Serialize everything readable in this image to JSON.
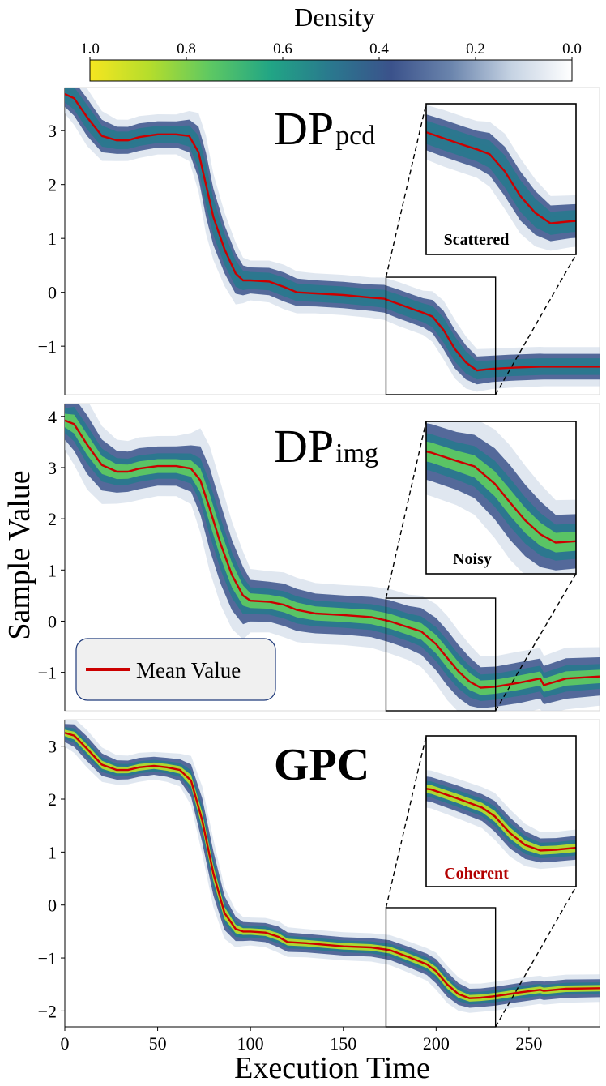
{
  "colorbar": {
    "label": "Density",
    "ticks": [
      "1.0",
      "0.8",
      "0.6",
      "0.4",
      "0.2",
      "0.0"
    ],
    "stops": [
      "#f6e620",
      "#b4dd2c",
      "#5dc863",
      "#21a585",
      "#2a788e",
      "#3b528b",
      "#6b85ad",
      "#c6d3e3",
      "#ffffff"
    ]
  },
  "axes": {
    "xlabel": "Execution Time",
    "ylabel": "Sample Value"
  },
  "legend": {
    "label": "Mean Value",
    "color": "#cc0000"
  },
  "chart_data": [
    {
      "type": "line",
      "title_main": "DP",
      "title_sub": "pcd",
      "xlim": [
        0,
        288
      ],
      "ylim": [
        -1.9,
        3.8
      ],
      "x_ticks": [
        0,
        50,
        100,
        150,
        200,
        250
      ],
      "y_ticks": [
        3,
        2,
        1,
        0,
        -1
      ],
      "y_tick_labels": [
        "3",
        "2",
        "1",
        "0",
        "−1"
      ],
      "mean_x": [
        0,
        5,
        12,
        20,
        28,
        34,
        40,
        50,
        60,
        67,
        72,
        76,
        80,
        86,
        92,
        96,
        100,
        110,
        118,
        125,
        135,
        150,
        165,
        172,
        180,
        188,
        193,
        198,
        204,
        210,
        216,
        222,
        230,
        240,
        256,
        258,
        270,
        288
      ],
      "mean_y": [
        3.68,
        3.6,
        3.25,
        2.9,
        2.82,
        2.82,
        2.88,
        2.93,
        2.93,
        2.9,
        2.6,
        2.0,
        1.4,
        0.8,
        0.35,
        0.22,
        0.22,
        0.2,
        0.1,
        0.0,
        -0.02,
        -0.05,
        -0.1,
        -0.12,
        -0.22,
        -0.32,
        -0.38,
        -0.45,
        -0.7,
        -1.05,
        -1.3,
        -1.45,
        -1.42,
        -1.4,
        -1.38,
        -1.38,
        -1.38,
        -1.38
      ],
      "band_spread": 0.14,
      "band_color": "#2a788e",
      "zoom_region": {
        "x": [
          173,
          232
        ],
        "y": [
          -1.9,
          0.28
        ]
      },
      "zoom_label": "Scattered",
      "zoom_label_color": "#000000"
    },
    {
      "type": "line",
      "title_main": "DP",
      "title_sub": "img",
      "xlim": [
        0,
        288
      ],
      "ylim": [
        -1.75,
        4.25
      ],
      "x_ticks": [
        0,
        50,
        100,
        150,
        200,
        250
      ],
      "y_ticks": [
        4,
        3,
        2,
        1,
        0,
        -1
      ],
      "y_tick_labels": [
        "4",
        "3",
        "2",
        "1",
        "0",
        "−1"
      ],
      "mean_x": [
        0,
        5,
        12,
        20,
        28,
        34,
        40,
        50,
        60,
        68,
        73,
        78,
        84,
        90,
        96,
        100,
        110,
        118,
        125,
        135,
        150,
        165,
        175,
        185,
        192,
        200,
        206,
        212,
        218,
        224,
        232,
        245,
        256,
        258,
        270,
        288
      ],
      "mean_y": [
        3.92,
        3.85,
        3.45,
        3.05,
        2.92,
        2.92,
        2.98,
        3.03,
        3.03,
        2.98,
        2.75,
        2.2,
        1.5,
        0.9,
        0.5,
        0.4,
        0.38,
        0.32,
        0.22,
        0.15,
        0.12,
        0.08,
        0.0,
        -0.12,
        -0.2,
        -0.45,
        -0.72,
        -0.98,
        -1.18,
        -1.3,
        -1.28,
        -1.2,
        -1.12,
        -1.25,
        -1.12,
        -1.08
      ],
      "band_spread": 0.22,
      "band_color": "#5dc863",
      "zoom_region": {
        "x": [
          173,
          232
        ],
        "y": [
          -1.75,
          0.45
        ]
      },
      "zoom_label": "Noisy",
      "zoom_label_color": "#000000"
    },
    {
      "type": "line",
      "title_main": "GPC",
      "title_sub": "",
      "xlim": [
        0,
        288
      ],
      "ylim": [
        -2.3,
        3.5
      ],
      "x_ticks": [
        0,
        50,
        100,
        150,
        200,
        250
      ],
      "y_ticks": [
        3,
        2,
        1,
        0,
        -1,
        -2
      ],
      "y_tick_labels": [
        "3",
        "2",
        "1",
        "0",
        "−1",
        "−2"
      ],
      "mean_x": [
        0,
        5,
        12,
        20,
        28,
        34,
        40,
        48,
        55,
        62,
        68,
        74,
        80,
        86,
        92,
        96,
        100,
        108,
        115,
        120,
        130,
        150,
        165,
        175,
        185,
        195,
        200,
        206,
        212,
        218,
        224,
        232,
        245,
        256,
        258,
        270,
        288
      ],
      "mean_y": [
        3.25,
        3.2,
        2.95,
        2.65,
        2.55,
        2.55,
        2.6,
        2.63,
        2.6,
        2.55,
        2.35,
        1.6,
        0.6,
        -0.15,
        -0.45,
        -0.5,
        -0.5,
        -0.52,
        -0.6,
        -0.7,
        -0.72,
        -0.78,
        -0.8,
        -0.85,
        -0.98,
        -1.12,
        -1.25,
        -1.5,
        -1.68,
        -1.76,
        -1.75,
        -1.72,
        -1.65,
        -1.6,
        -1.62,
        -1.58,
        -1.57
      ],
      "band_spread": 0.1,
      "band_color": "#b4dd2c",
      "zoom_region": {
        "x": [
          173,
          232
        ],
        "y": [
          -2.3,
          -0.05
        ]
      },
      "zoom_label": "Coherent",
      "zoom_label_color": "#b30000"
    }
  ]
}
